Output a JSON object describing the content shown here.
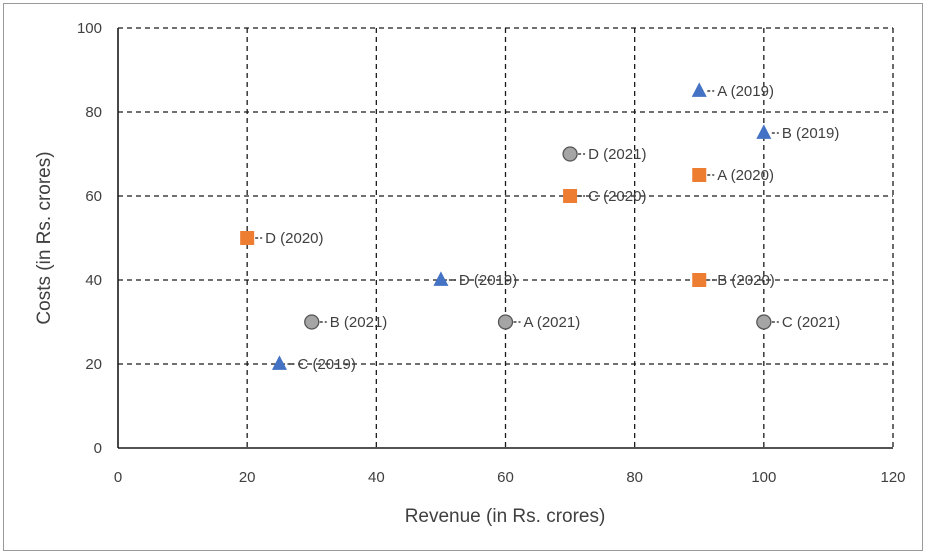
{
  "chart_data": {
    "type": "scatter",
    "title": "",
    "xlabel": "Revenue (in Rs. crores)",
    "ylabel": "Costs (in Rs. crores)",
    "xlim": [
      0,
      120
    ],
    "ylim": [
      0,
      100
    ],
    "xticks": [
      0,
      20,
      40,
      60,
      80,
      100,
      120
    ],
    "yticks": [
      0,
      20,
      40,
      60,
      80,
      100
    ],
    "grid": true,
    "grid_style": "dashed",
    "legend": "none",
    "series": [
      {
        "year": "2019",
        "marker": "triangle",
        "color": "#4472c4",
        "points": [
          {
            "label": "A (2019)",
            "x": 90,
            "y": 85
          },
          {
            "label": "B (2019)",
            "x": 100,
            "y": 75
          },
          {
            "label": "C (2019)",
            "x": 25,
            "y": 20
          },
          {
            "label": "D (2019)",
            "x": 50,
            "y": 40
          }
        ]
      },
      {
        "year": "2020",
        "marker": "square",
        "color": "#ed7d31",
        "points": [
          {
            "label": "A (2020)",
            "x": 90,
            "y": 65
          },
          {
            "label": "B (2020)",
            "x": 90,
            "y": 40
          },
          {
            "label": "C (2020)",
            "x": 70,
            "y": 60
          },
          {
            "label": "D (2020)",
            "x": 20,
            "y": 50
          }
        ]
      },
      {
        "year": "2021",
        "marker": "circle",
        "color": "#a5a5a5",
        "points": [
          {
            "label": "A (2021)",
            "x": 60,
            "y": 30
          },
          {
            "label": "B (2021)",
            "x": 30,
            "y": 30
          },
          {
            "label": "C (2021)",
            "x": 100,
            "y": 30
          },
          {
            "label": "D (2021)",
            "x": 70,
            "y": 70
          }
        ]
      }
    ]
  }
}
